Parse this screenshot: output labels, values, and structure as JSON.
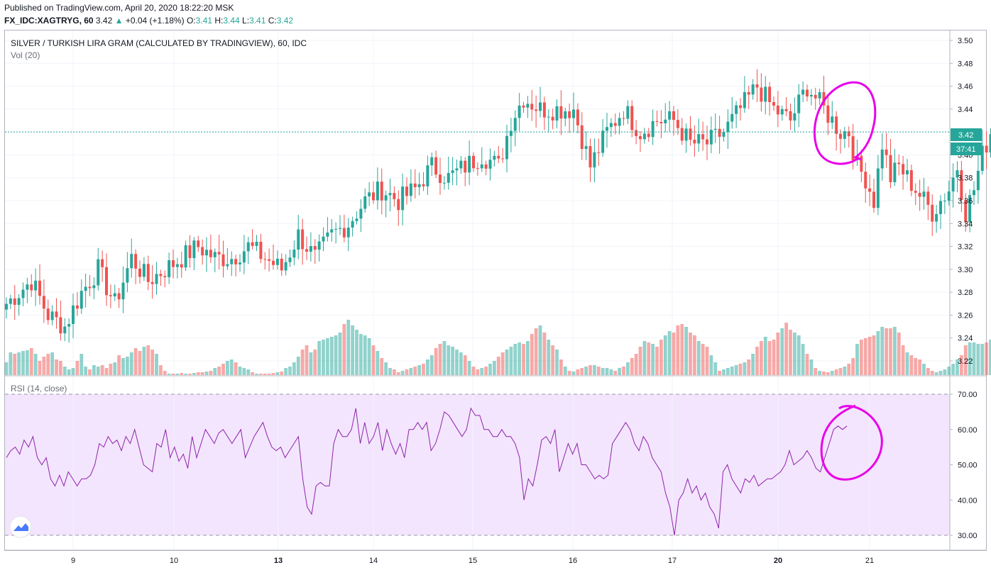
{
  "header": {
    "published": "Published on TradingView.com, April 20, 2020 18:22:20 MSK",
    "symbol": "FX_IDC:XAGTRYG, 60",
    "last": "3.42",
    "change": "+0.04 (+1.18%)",
    "open_label": "O:",
    "open": "3.41",
    "high_label": "H:",
    "high": "3.44",
    "low_label": "L:",
    "low": "3.41",
    "close_label": "C:",
    "close": "3.42"
  },
  "colors": {
    "up": "#26a69a",
    "down": "#ef5350",
    "rsi_line": "#8e24aa",
    "rsi_band": "#f3e5fd",
    "annotation": "#e800e8",
    "last_price_line": "#26a69a"
  },
  "chart_data": [
    {
      "type": "candlestick",
      "title": "SILVER / TURKISH LIRA GRAM (CALCULATED BY TRADINGVIEW), 60, IDC",
      "volume_label": "Vol (20)",
      "y_ticks": [
        "3.50",
        "3.48",
        "3.46",
        "3.44",
        "3.42",
        "3.40",
        "3.38",
        "3.36",
        "3.34",
        "3.32",
        "3.30",
        "3.28",
        "3.26",
        "3.24",
        "3.22"
      ],
      "ylim": [
        3.213,
        3.508
      ],
      "x_ticks": [
        "9",
        "10",
        "13",
        "14",
        "15",
        "16",
        "17",
        "20",
        "21"
      ],
      "last_price": "3.42",
      "countdown": "37:41",
      "bars_per_day": 24,
      "anchors": [
        [
          0,
          3.27
        ],
        [
          6,
          3.29
        ],
        [
          10,
          3.26
        ],
        [
          14,
          3.25
        ],
        [
          18,
          3.28
        ],
        [
          22,
          3.3
        ],
        [
          26,
          3.27
        ],
        [
          30,
          3.31
        ],
        [
          34,
          3.29
        ],
        [
          38,
          3.3
        ],
        [
          42,
          3.31
        ],
        [
          46,
          3.32
        ],
        [
          50,
          3.31
        ],
        [
          54,
          3.31
        ],
        [
          58,
          3.32
        ],
        [
          62,
          3.31
        ],
        [
          66,
          3.3
        ],
        [
          70,
          3.33
        ],
        [
          74,
          3.31
        ],
        [
          78,
          3.33
        ],
        [
          82,
          3.34
        ],
        [
          86,
          3.36
        ],
        [
          90,
          3.37
        ],
        [
          94,
          3.36
        ],
        [
          98,
          3.37
        ],
        [
          102,
          3.39
        ],
        [
          106,
          3.38
        ],
        [
          110,
          3.39
        ],
        [
          114,
          3.4
        ],
        [
          118,
          3.39
        ],
        [
          121,
          3.43
        ],
        [
          124,
          3.45
        ],
        [
          128,
          3.44
        ],
        [
          132,
          3.44
        ],
        [
          136,
          3.44
        ],
        [
          140,
          3.39
        ],
        [
          144,
          3.42
        ],
        [
          148,
          3.44
        ],
        [
          152,
          3.42
        ],
        [
          156,
          3.43
        ],
        [
          160,
          3.43
        ],
        [
          164,
          3.41
        ],
        [
          168,
          3.41
        ],
        [
          172,
          3.42
        ],
        [
          176,
          3.44
        ],
        [
          180,
          3.46
        ],
        [
          184,
          3.44
        ],
        [
          188,
          3.43
        ],
        [
          192,
          3.46
        ],
        [
          196,
          3.44
        ],
        [
          200,
          3.42
        ],
        [
          202,
          3.42
        ],
        [
          204,
          3.39
        ],
        [
          206,
          3.38
        ],
        [
          208,
          3.36
        ],
        [
          210,
          3.41
        ],
        [
          212,
          3.38
        ],
        [
          214,
          3.39
        ],
        [
          218,
          3.37
        ],
        [
          222,
          3.35
        ],
        [
          226,
          3.37
        ],
        [
          228,
          3.39
        ],
        [
          230,
          3.35
        ],
        [
          232,
          3.37
        ],
        [
          234,
          3.4
        ],
        [
          236,
          3.42
        ]
      ],
      "volumes": [
        0.18,
        0.32,
        0.3,
        0.32,
        0.34,
        0.35,
        0.38,
        0.3,
        0.2,
        0.26,
        0.3,
        0.32,
        0.22,
        0.2,
        0.12,
        0.08,
        0.1,
        0.2,
        0.3,
        0.12,
        0.08,
        0.14,
        0.12,
        0.14,
        0.1,
        0.16,
        0.18,
        0.28,
        0.24,
        0.26,
        0.32,
        0.38,
        0.34,
        0.4,
        0.42,
        0.36,
        0.3,
        0.14,
        0.06,
        0.02,
        0.02,
        0.02,
        0.03,
        0.02,
        0.02,
        0.03,
        0.04,
        0.04,
        0.05,
        0.06,
        0.1,
        0.12,
        0.16,
        0.2,
        0.22,
        0.18,
        0.12,
        0.1,
        0.08,
        0.04,
        0.02,
        0.02,
        0.02,
        0.02,
        0.03,
        0.04,
        0.05,
        0.1,
        0.12,
        0.18,
        0.26,
        0.36,
        0.42,
        0.32,
        0.36,
        0.48,
        0.5,
        0.52,
        0.54,
        0.56,
        0.6,
        0.72,
        0.78,
        0.7,
        0.64,
        0.58,
        0.56,
        0.52,
        0.42,
        0.34,
        0.24,
        0.18,
        0.1,
        0.08,
        0.04,
        0.06,
        0.08,
        0.1,
        0.12,
        0.14,
        0.16,
        0.22,
        0.28,
        0.38,
        0.44,
        0.48,
        0.42,
        0.4,
        0.36,
        0.32,
        0.28,
        0.2,
        0.12,
        0.08,
        0.1,
        0.12,
        0.16,
        0.2,
        0.26,
        0.32,
        0.36,
        0.4,
        0.44,
        0.46,
        0.44,
        0.48,
        0.58,
        0.66,
        0.7,
        0.6,
        0.5,
        0.42,
        0.36,
        0.22,
        0.12,
        0.06,
        0.05,
        0.08,
        0.1,
        0.12,
        0.14,
        0.14,
        0.12,
        0.1,
        0.1,
        0.08,
        0.06,
        0.1,
        0.12,
        0.18,
        0.24,
        0.3,
        0.4,
        0.48,
        0.46,
        0.44,
        0.4,
        0.5,
        0.56,
        0.62,
        0.6,
        0.7,
        0.72,
        0.68,
        0.6,
        0.56,
        0.48,
        0.44,
        0.4,
        0.28,
        0.18,
        0.06,
        0.08,
        0.1,
        0.12,
        0.14,
        0.16,
        0.18,
        0.22,
        0.3,
        0.4,
        0.48,
        0.54,
        0.48,
        0.5,
        0.6,
        0.66,
        0.74,
        0.64,
        0.6,
        0.56,
        0.44,
        0.3,
        0.22,
        0.1,
        0.06,
        0.05,
        0.04,
        0.06,
        0.08,
        0.1,
        0.12,
        0.16,
        0.24,
        0.44,
        0.5,
        0.52,
        0.54,
        0.56,
        0.62,
        0.68,
        0.66,
        0.66,
        0.68,
        0.6,
        0.42,
        0.32,
        0.28,
        0.24,
        0.22,
        0.16,
        0.1,
        0.06,
        0.04,
        0.06,
        0.08,
        0.12,
        0.16,
        0.22,
        0.28,
        0.42,
        0.46,
        0.46,
        0.44,
        0.44,
        0.46,
        0.5,
        0.48,
        0.52,
        0.54,
        0.5,
        0.16
      ]
    },
    {
      "type": "line",
      "title": "RSI (14, close)",
      "y_ticks": [
        "70.00",
        "60.00",
        "50.00",
        "40.00",
        "30.00"
      ],
      "ylim": [
        27,
        73
      ],
      "band": [
        30,
        70
      ],
      "values": [
        52,
        54,
        55,
        53,
        57,
        55,
        58,
        52,
        50,
        52,
        46,
        44,
        47,
        44,
        48,
        46,
        44,
        46,
        46,
        47,
        50,
        56,
        55,
        58,
        56,
        57,
        54,
        58,
        56,
        60,
        55,
        50,
        49,
        48,
        56,
        55,
        60,
        52,
        55,
        51,
        53,
        49,
        58,
        52,
        56,
        60,
        58,
        56,
        59,
        60,
        58,
        56,
        58,
        60,
        52,
        55,
        58,
        60,
        62,
        58,
        55,
        54,
        55,
        52,
        54,
        56,
        58,
        46,
        38,
        36,
        44,
        45,
        44,
        44,
        56,
        60,
        58,
        58,
        60,
        66,
        56,
        62,
        56,
        58,
        62,
        54,
        60,
        56,
        53,
        56,
        52,
        60,
        60,
        62,
        60,
        62,
        54,
        56,
        60,
        65,
        64,
        62,
        60,
        58,
        60,
        66,
        64,
        64,
        60,
        60,
        58,
        58,
        60,
        58,
        58,
        56,
        52,
        40,
        46,
        44,
        50,
        57,
        58,
        56,
        60,
        48,
        52,
        56,
        53,
        56,
        50,
        50,
        48,
        46,
        47,
        46,
        47,
        56,
        58,
        60,
        62,
        60,
        56,
        54,
        58,
        56,
        52,
        50,
        48,
        42,
        38,
        30,
        40,
        42,
        46,
        42,
        44,
        40,
        42,
        38,
        36,
        32,
        48,
        50,
        46,
        44,
        42,
        46,
        45,
        47,
        44,
        45,
        46,
        46,
        47,
        48,
        50,
        54,
        50,
        51,
        52,
        54,
        52,
        49,
        48,
        52,
        56,
        60,
        61,
        60,
        61
      ]
    }
  ]
}
